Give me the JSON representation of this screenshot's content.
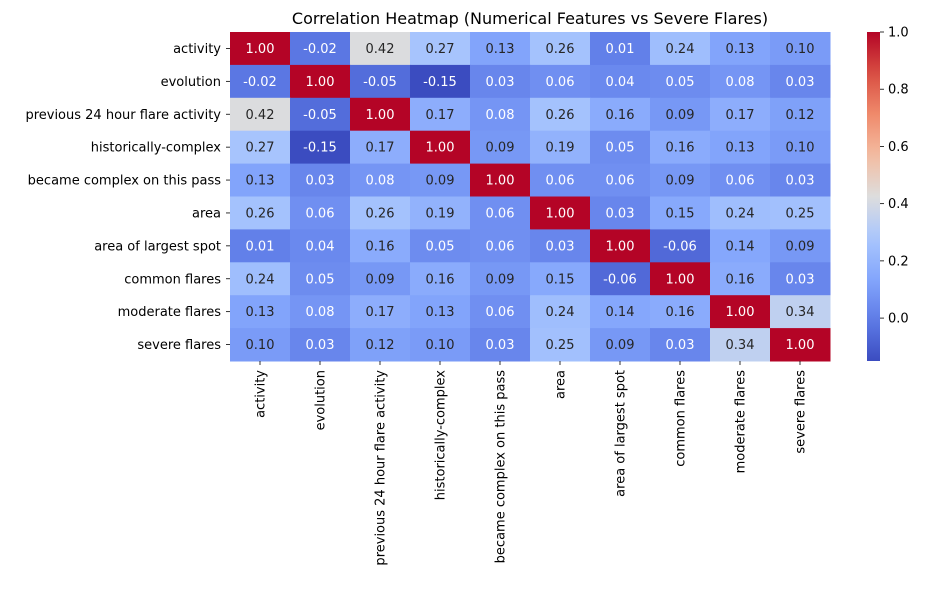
{
  "chart_data": {
    "type": "heatmap",
    "title": "Correlation Heatmap (Numerical Features vs Severe Flares)",
    "xlabel": "",
    "ylabel": "",
    "labels": [
      "activity",
      "evolution",
      "previous 24 hour flare activity",
      "historically-complex",
      "became complex on this pass",
      "area",
      "area of largest spot",
      "common flares",
      "moderate flares",
      "severe flares"
    ],
    "matrix": [
      [
        1.0,
        -0.02,
        0.42,
        0.27,
        0.13,
        0.26,
        0.01,
        0.24,
        0.13,
        0.1
      ],
      [
        -0.02,
        1.0,
        -0.05,
        -0.15,
        0.03,
        0.06,
        0.04,
        0.05,
        0.08,
        0.03
      ],
      [
        0.42,
        -0.05,
        1.0,
        0.17,
        0.08,
        0.26,
        0.16,
        0.09,
        0.17,
        0.12
      ],
      [
        0.27,
        -0.15,
        0.17,
        1.0,
        0.09,
        0.19,
        0.05,
        0.16,
        0.13,
        0.1
      ],
      [
        0.13,
        0.03,
        0.08,
        0.09,
        1.0,
        0.06,
        0.06,
        0.09,
        0.06,
        0.03
      ],
      [
        0.26,
        0.06,
        0.26,
        0.19,
        0.06,
        1.0,
        0.03,
        0.15,
        0.24,
        0.25
      ],
      [
        0.01,
        0.04,
        0.16,
        0.05,
        0.06,
        0.03,
        1.0,
        -0.06,
        0.14,
        0.09
      ],
      [
        0.24,
        0.05,
        0.09,
        0.16,
        0.09,
        0.15,
        -0.06,
        1.0,
        0.16,
        0.03
      ],
      [
        0.13,
        0.08,
        0.17,
        0.13,
        0.06,
        0.24,
        0.14,
        0.16,
        1.0,
        0.34
      ],
      [
        0.1,
        0.03,
        0.12,
        0.1,
        0.03,
        0.25,
        0.09,
        0.03,
        0.34,
        1.0
      ]
    ],
    "colormap": "coolwarm",
    "vmin": -0.15,
    "vmax": 1.0,
    "colorbar_ticks": [
      "1.0",
      "0.8",
      "0.6",
      "0.4",
      "0.2",
      "0.0"
    ],
    "colorbar_tick_values": [
      1.0,
      0.8,
      0.6,
      0.4,
      0.2,
      0.0
    ],
    "annotation_format": "2 decimals",
    "legend_position": "colorbar-right"
  }
}
